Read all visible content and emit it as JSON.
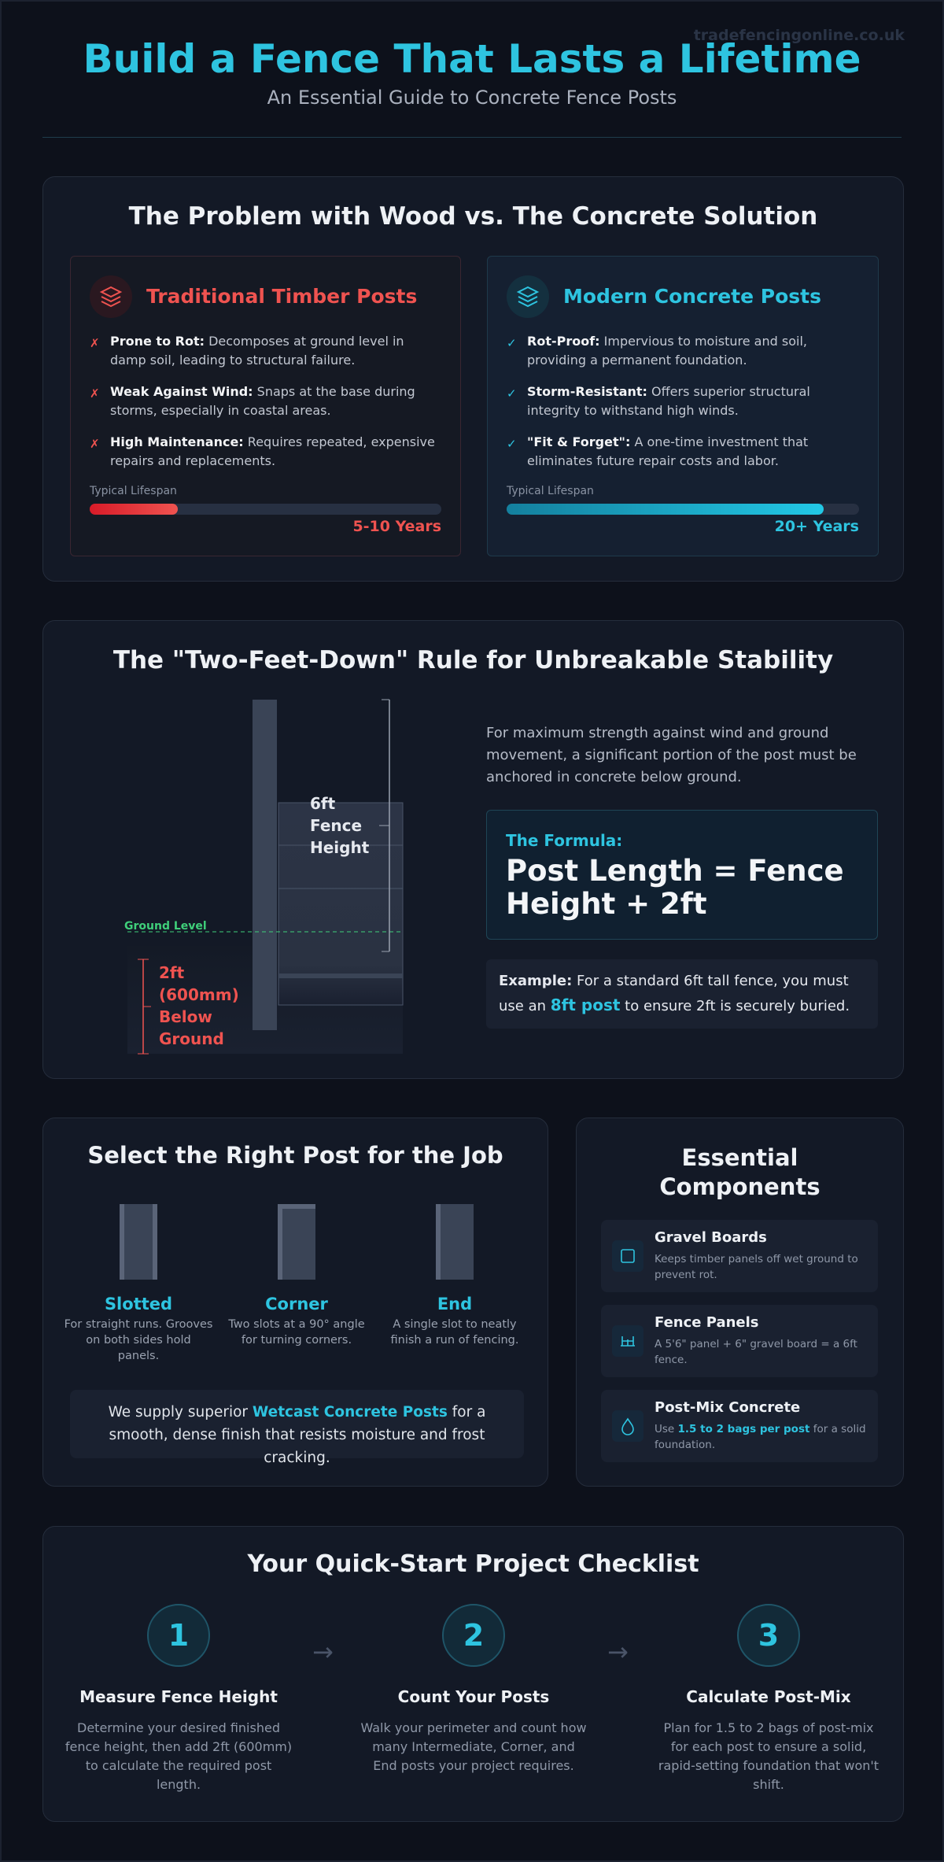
{
  "header": {
    "watermark": "tradefencingonline.co.uk",
    "title": "Build a Fence That Lasts a Lifetime",
    "subtitle": "An Essential Guide to Concrete Fence Posts"
  },
  "comparison": {
    "title": "The Problem with Wood vs. The Concrete Solution",
    "timber": {
      "title": "Traditional Timber Posts",
      "marker": "✗",
      "points": [
        {
          "term": "Prone to Rot:",
          "text": "Decomposes at ground level in damp soil, leading to structural failure."
        },
        {
          "term": "Weak Against Wind:",
          "text": "Snaps at the base during storms, especially in coastal areas."
        },
        {
          "term": "High Maintenance:",
          "text": "Requires repeated, expensive repairs and replacements."
        }
      ],
      "lifespan_label": "Typical Lifespan",
      "lifespan": "5-10 Years"
    },
    "concrete": {
      "title": "Modern Concrete Posts",
      "marker": "✓",
      "points": [
        {
          "term": "Rot-Proof:",
          "text": "Impervious to moisture and soil, providing a permanent foundation."
        },
        {
          "term": "Storm-Resistant:",
          "text": "Offers superior structural integrity to withstand high winds."
        },
        {
          "term": "\"Fit & Forget\":",
          "text": "A one-time investment that eliminates future repair costs and labor."
        }
      ],
      "lifespan_label": "Typical Lifespan",
      "lifespan": "20+ Years"
    }
  },
  "rule": {
    "title": "The \"Two-Feet-Down\" Rule for Unbreakable Stability",
    "diagram": {
      "fence_height": "6ft Fence Height",
      "ground_level": "Ground Level",
      "below_ground": "2ft (600mm) Below Ground"
    },
    "intro": "For maximum strength against wind and ground movement, a significant portion of the post must be anchored in concrete below ground.",
    "formula_label": "The Formula:",
    "formula": "Post Length = Fence Height + 2ft",
    "example": {
      "lead": "Example:",
      "before": "For a standard 6ft tall fence, you must use an",
      "highlight": "8ft post",
      "after": "to ensure 2ft is securely buried."
    }
  },
  "posts": {
    "title": "Select the Right Post for the Job",
    "types": [
      {
        "name": "Slotted",
        "desc": "For straight runs. Grooves on both sides hold panels."
      },
      {
        "name": "Corner",
        "desc": "Two slots at a 90° angle for turning corners."
      },
      {
        "name": "End",
        "desc": "A single slot to neatly finish a run of fencing."
      }
    ],
    "note": {
      "before": "We supply superior",
      "highlight": "Wetcast Concrete Posts",
      "after": "for a smooth, dense finish that resists moisture and frost cracking."
    }
  },
  "components": {
    "title": "Essential Components",
    "items": [
      {
        "name": "Gravel Boards",
        "desc": "Keeps timber panels off wet ground to prevent rot."
      },
      {
        "name": "Fence Panels",
        "desc": "A 5'6\" panel + 6\" gravel board = a 6ft fence."
      },
      {
        "name": "Post-Mix Concrete",
        "desc_before": "Use",
        "desc_highlight": "1.5 to 2 bags per post",
        "desc_after": "for a solid foundation."
      }
    ]
  },
  "checklist": {
    "title": "Your Quick-Start Project Checklist",
    "arrows": [
      "→",
      "→"
    ],
    "steps": [
      {
        "number": "1",
        "title": "Measure Fence Height",
        "text": "Determine your desired finished fence height, then add 2ft (600mm) to calculate the required post length."
      },
      {
        "number": "2",
        "title": "Count Your Posts",
        "text": "Walk your perimeter and count how many Intermediate, Corner, and End posts your project requires."
      },
      {
        "number": "3",
        "title": "Calculate Post-Mix",
        "text": "Plan for 1.5 to 2 bags of post-mix for each post to ensure a solid, rapid-setting foundation that won't shift."
      }
    ]
  }
}
